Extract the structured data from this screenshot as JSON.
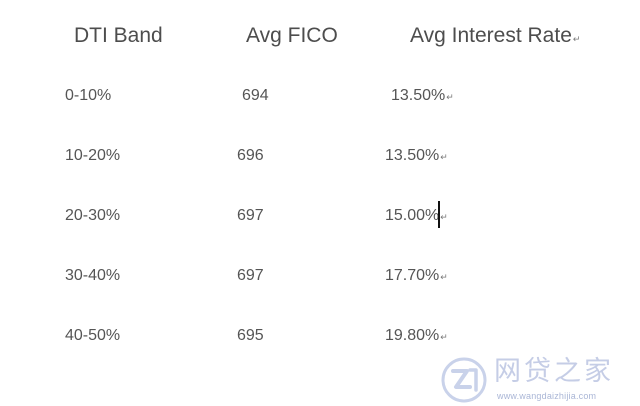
{
  "table": {
    "headers": {
      "dti": "DTI Band",
      "fico": "Avg FICO",
      "rate": "Avg Interest Rate"
    },
    "rows": [
      {
        "dti": "0-10%",
        "fico": "694",
        "rate": "13.50%"
      },
      {
        "dti": "10-20%",
        "fico": "696",
        "rate": "13.50%"
      },
      {
        "dti": "20-30%",
        "fico": "697",
        "rate": "15.00%"
      },
      {
        "dti": "30-40%",
        "fico": "697",
        "rate": "17.70%"
      },
      {
        "dti": "40-50%",
        "fico": "695",
        "rate": "19.80%"
      }
    ],
    "paragraph_mark": "↵"
  },
  "watermark": {
    "logo_icon": "wangdaizhijia-logo-icon",
    "brand_text": "网贷之家",
    "url": "www.wangdaizhijia.com"
  }
}
